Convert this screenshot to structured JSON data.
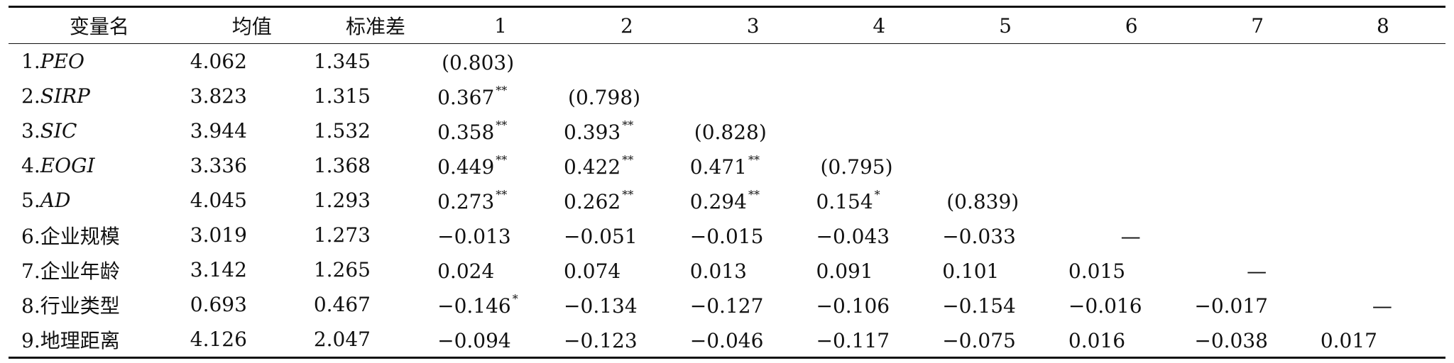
{
  "table": {
    "headers": [
      "变量名",
      "均值",
      "标准差",
      "1",
      "2",
      "3",
      "4",
      "5",
      "6",
      "7",
      "8"
    ],
    "rows": [
      {
        "name": "1.",
        "name_abbr": "PEO",
        "mean": "4.062",
        "sd": "1.345",
        "cells": [
          [
            "(0.803)",
            ""
          ],
          [
            "",
            ""
          ],
          [
            "",
            ""
          ],
          [
            "",
            ""
          ],
          [
            "",
            ""
          ],
          [
            "",
            ""
          ],
          [
            "",
            ""
          ],
          [
            "",
            ""
          ]
        ]
      },
      {
        "name": "2.",
        "name_abbr": "SIRP",
        "mean": "3.823",
        "sd": "1.315",
        "cells": [
          [
            "0.367",
            "**"
          ],
          [
            "(0.798)",
            ""
          ],
          [
            "",
            ""
          ],
          [
            "",
            ""
          ],
          [
            "",
            ""
          ],
          [
            "",
            ""
          ],
          [
            "",
            ""
          ],
          [
            "",
            ""
          ]
        ]
      },
      {
        "name": "3.",
        "name_abbr": "SIC",
        "mean": "3.944",
        "sd": "1.532",
        "cells": [
          [
            "0.358",
            "**"
          ],
          [
            "0.393",
            "**"
          ],
          [
            "(0.828)",
            ""
          ],
          [
            "",
            ""
          ],
          [
            "",
            ""
          ],
          [
            "",
            ""
          ],
          [
            "",
            ""
          ],
          [
            "",
            ""
          ]
        ]
      },
      {
        "name": "4.",
        "name_abbr": "EOGI",
        "mean": "3.336",
        "sd": "1.368",
        "cells": [
          [
            "0.449",
            "**"
          ],
          [
            "0.422",
            "**"
          ],
          [
            "0.471",
            "**"
          ],
          [
            "(0.795)",
            ""
          ],
          [
            "",
            ""
          ],
          [
            "",
            ""
          ],
          [
            "",
            ""
          ],
          [
            "",
            ""
          ]
        ]
      },
      {
        "name": "5.",
        "name_abbr": "AD",
        "mean": "4.045",
        "sd": "1.293",
        "cells": [
          [
            "0.273",
            "**"
          ],
          [
            "0.262",
            "**"
          ],
          [
            "0.294",
            "**"
          ],
          [
            "0.154",
            "*"
          ],
          [
            "(0.839)",
            ""
          ],
          [
            "",
            ""
          ],
          [
            "",
            ""
          ],
          [
            "",
            ""
          ]
        ]
      },
      {
        "name": "6.企业规模",
        "name_abbr": "",
        "mean": "3.019",
        "sd": "1.273",
        "cells": [
          [
            "−0.013",
            ""
          ],
          [
            "−0.051",
            ""
          ],
          [
            "−0.015",
            ""
          ],
          [
            "−0.043",
            ""
          ],
          [
            "−0.033",
            ""
          ],
          [
            "—",
            ""
          ],
          [
            "",
            ""
          ],
          [
            "",
            ""
          ]
        ]
      },
      {
        "name": "7.企业年龄",
        "name_abbr": "",
        "mean": "3.142",
        "sd": "1.265",
        "cells": [
          [
            "0.024",
            ""
          ],
          [
            "0.074",
            ""
          ],
          [
            "0.013",
            ""
          ],
          [
            "0.091",
            ""
          ],
          [
            "0.101",
            ""
          ],
          [
            "0.015",
            ""
          ],
          [
            "—",
            ""
          ],
          [
            "",
            ""
          ]
        ]
      },
      {
        "name": "8.行业类型",
        "name_abbr": "",
        "mean": "0.693",
        "sd": "0.467",
        "cells": [
          [
            "−0.146",
            "*"
          ],
          [
            "−0.134",
            ""
          ],
          [
            "−0.127",
            ""
          ],
          [
            "−0.106",
            ""
          ],
          [
            "−0.154",
            ""
          ],
          [
            "−0.016",
            ""
          ],
          [
            "−0.017",
            ""
          ],
          [
            "—",
            ""
          ]
        ]
      },
      {
        "name": "9.地理距离",
        "name_abbr": "",
        "mean": "4.126",
        "sd": "2.047",
        "cells": [
          [
            "−0.094",
            ""
          ],
          [
            "−0.123",
            ""
          ],
          [
            "−0.046",
            ""
          ],
          [
            "−0.117",
            ""
          ],
          [
            "−0.075",
            ""
          ],
          [
            "0.016",
            ""
          ],
          [
            "−0.038",
            ""
          ],
          [
            "0.017",
            ""
          ]
        ]
      }
    ]
  }
}
